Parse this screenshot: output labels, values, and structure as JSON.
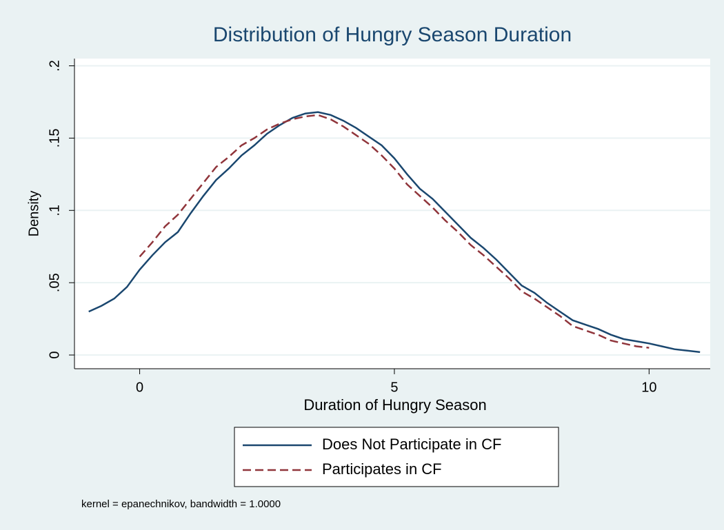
{
  "chart_data": {
    "type": "line",
    "title": "Distribution of Hungry Season Duration",
    "x_label": "Duration of Hungry Season",
    "y_label": "Density",
    "note": "kernel = epanechnikov, bandwidth = 1.0000",
    "x": [
      -1,
      -0.75,
      -0.5,
      -0.25,
      0,
      0.25,
      0.5,
      0.75,
      1,
      1.25,
      1.5,
      1.75,
      2,
      2.25,
      2.5,
      2.75,
      3,
      3.25,
      3.5,
      3.75,
      4,
      4.25,
      4.5,
      4.75,
      5,
      5.25,
      5.5,
      5.75,
      6,
      6.25,
      6.5,
      6.75,
      7,
      7.25,
      7.5,
      7.75,
      8,
      8.25,
      8.5,
      8.75,
      9,
      9.25,
      9.5,
      9.75,
      10,
      10.25,
      10.5,
      10.75,
      11
    ],
    "series": [
      {
        "name": "Does Not Participate in CF",
        "color": "#1a476f",
        "dash": "solid",
        "values": [
          0.03,
          0.034,
          0.039,
          0.047,
          0.059,
          0.069,
          0.078,
          0.085,
          0.098,
          0.11,
          0.121,
          0.129,
          0.138,
          0.145,
          0.153,
          0.159,
          0.164,
          0.167,
          0.168,
          0.166,
          0.162,
          0.157,
          0.151,
          0.145,
          0.136,
          0.125,
          0.115,
          0.108,
          0.099,
          0.09,
          0.081,
          0.074,
          0.066,
          0.057,
          0.048,
          0.043,
          0.036,
          0.03,
          0.024,
          0.021,
          0.018,
          0.014,
          0.011,
          0.0095,
          0.008,
          0.006,
          0.004,
          0.003,
          0.002
        ]
      },
      {
        "name": "Participates in CF",
        "color": "#90353b",
        "dash": "dashed",
        "values": [
          null,
          null,
          null,
          null,
          0.068,
          0.078,
          0.089,
          0.097,
          0.108,
          0.119,
          0.13,
          0.137,
          0.145,
          0.15,
          0.156,
          0.16,
          0.163,
          0.165,
          0.166,
          0.163,
          0.158,
          0.152,
          0.146,
          0.138,
          0.129,
          0.118,
          0.11,
          0.102,
          0.093,
          0.085,
          0.076,
          0.069,
          0.061,
          0.053,
          0.044,
          0.039,
          0.033,
          0.027,
          0.02,
          0.017,
          0.014,
          0.01,
          0.008,
          0.006,
          0.005,
          null,
          null,
          null,
          null
        ]
      }
    ],
    "xlim": [
      -1.28,
      11.2
    ],
    "ylim": [
      -0.0095,
      0.205
    ],
    "xticks": [
      0,
      5,
      10
    ],
    "yticks": [
      0,
      {
        "value": 0.05,
        "label": ".05"
      },
      {
        "value": 0.1,
        "label": ".1"
      },
      {
        "value": 0.15,
        "label": ".15"
      },
      {
        "value": 0.2,
        "label": ".2"
      }
    ],
    "grid": true,
    "legend": "bottom"
  }
}
